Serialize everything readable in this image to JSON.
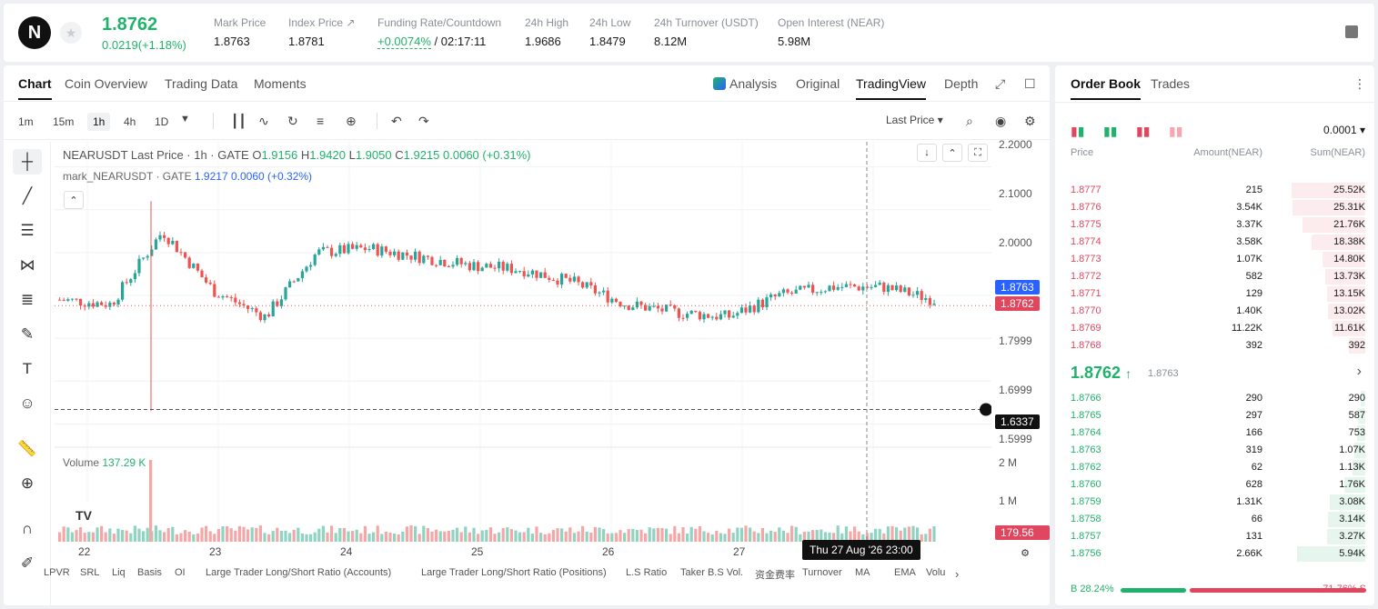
{
  "header": {
    "logo": "N",
    "last_price": "1.8762",
    "change": "0.0219(+1.18%)",
    "stats": [
      {
        "label": "Mark Price",
        "value": "1.8763"
      },
      {
        "label": "Index Price ↗",
        "value": "1.8781"
      },
      {
        "label": "Funding Rate/Countdown",
        "value_green": "+0.0074%",
        "value": "/ 02:17:11"
      },
      {
        "label": "24h High",
        "value": "1.9686"
      },
      {
        "label": "24h Low",
        "value": "1.8479"
      },
      {
        "label": "24h Turnover (USDT)",
        "value": "8.12M"
      },
      {
        "label": "Open Interest (NEAR)",
        "value": "5.98M"
      }
    ]
  },
  "main_tabs": [
    "Chart",
    "Coin Overview",
    "Trading Data",
    "Moments"
  ],
  "view_tabs": {
    "analysis": "Analysis",
    "original": "Original",
    "tradingview": "TradingView",
    "depth": "Depth"
  },
  "timeframes": [
    "1m",
    "15m",
    "1h",
    "4h",
    "1D"
  ],
  "price_type": "Last Price",
  "legend": {
    "main": "NEARUSDT Last Price · 1h · GATE",
    "o_label": "O",
    "o": "1.9156",
    "h_label": "H",
    "h": "1.9420",
    "l_label": "L",
    "l": "1.9050",
    "c_label": "C",
    "c": "1.9215",
    "chg": "0.0060 (+0.31%)",
    "mark": "mark_NEARUSDT · GATE",
    "mark_val": "1.9217",
    "mark_chg": "0.0060 (+0.32%)",
    "volume_label": "Volume",
    "volume_val": "137.29 K"
  },
  "y_axis": [
    "2.2000",
    "2.1000",
    "2.0000",
    "1.7999",
    "1.6999",
    "1.5999"
  ],
  "badges": {
    "mark": "1.8763",
    "last": "1.8762",
    "cross": "1.6337",
    "vol": "179.56 K"
  },
  "vol_axis": [
    "2 M",
    "1 M"
  ],
  "x_axis": [
    "22",
    "23",
    "24",
    "25",
    "26",
    "27"
  ],
  "x_tip": "Thu 27 Aug '26   23:00",
  "indicators": [
    "LPVR",
    "SRL",
    "Liq",
    "Basis",
    "OI",
    "Large Trader Long/Short Ratio (Accounts)",
    "Large Trader Long/Short Ratio (Positions)",
    "L.S Ratio",
    "Taker B.S Vol.",
    "资金费率",
    "Turnover",
    "MA",
    "EMA",
    "Volu"
  ],
  "chart_data": {
    "type": "line",
    "x": [
      "22",
      "23",
      "24",
      "25",
      "26",
      "27"
    ],
    "series": [
      {
        "name": "NEARUSDT Last Price",
        "values": [
          1.89,
          1.92,
          2.03,
          1.96,
          1.88,
          1.93
        ]
      }
    ],
    "ylim": [
      1.55,
      2.25
    ],
    "grid": true
  },
  "orderbook": {
    "tabs": [
      "Order Book",
      "Trades"
    ],
    "precision": "0.0001",
    "headers": {
      "price": "Price",
      "amount": "Amount(NEAR)",
      "sum": "Sum(NEAR)"
    },
    "asks": [
      {
        "p": "1.8777",
        "a": "215",
        "s": "25.52K",
        "depth": 0.54
      },
      {
        "p": "1.8776",
        "a": "3.54K",
        "s": "25.31K",
        "depth": 0.53
      },
      {
        "p": "1.8775",
        "a": "3.37K",
        "s": "21.76K",
        "depth": 0.46
      },
      {
        "p": "1.8774",
        "a": "3.58K",
        "s": "18.38K",
        "depth": 0.39
      },
      {
        "p": "1.8773",
        "a": "1.07K",
        "s": "14.80K",
        "depth": 0.31
      },
      {
        "p": "1.8772",
        "a": "582",
        "s": "13.73K",
        "depth": 0.29
      },
      {
        "p": "1.8771",
        "a": "129",
        "s": "13.15K",
        "depth": 0.28
      },
      {
        "p": "1.8770",
        "a": "1.40K",
        "s": "13.02K",
        "depth": 0.27
      },
      {
        "p": "1.8769",
        "a": "11.22K",
        "s": "11.61K",
        "depth": 0.24
      },
      {
        "p": "1.8768",
        "a": "392",
        "s": "392",
        "depth": 0.12
      }
    ],
    "mid": "1.8762",
    "mid_arrow": "↑",
    "mid_mark": "1.8763",
    "bids": [
      {
        "p": "1.8766",
        "a": "290",
        "s": "290",
        "depth": 0.03
      },
      {
        "p": "1.8765",
        "a": "297",
        "s": "587",
        "depth": 0.05
      },
      {
        "p": "1.8764",
        "a": "166",
        "s": "753",
        "depth": 0.06
      },
      {
        "p": "1.8763",
        "a": "319",
        "s": "1.07K",
        "depth": 0.08
      },
      {
        "p": "1.8762",
        "a": "62",
        "s": "1.13K",
        "depth": 0.09
      },
      {
        "p": "1.8760",
        "a": "628",
        "s": "1.76K",
        "depth": 0.15
      },
      {
        "p": "1.8759",
        "a": "1.31K",
        "s": "3.08K",
        "depth": 0.26
      },
      {
        "p": "1.8758",
        "a": "66",
        "s": "3.14K",
        "depth": 0.27
      },
      {
        "p": "1.8757",
        "a": "131",
        "s": "3.27K",
        "depth": 0.28
      },
      {
        "p": "1.8756",
        "a": "2.66K",
        "s": "5.94K",
        "depth": 0.5
      }
    ],
    "buy_ratio": "B 28.24%",
    "sell_ratio": "71.76% S",
    "buy_fraction": 0.2824
  }
}
